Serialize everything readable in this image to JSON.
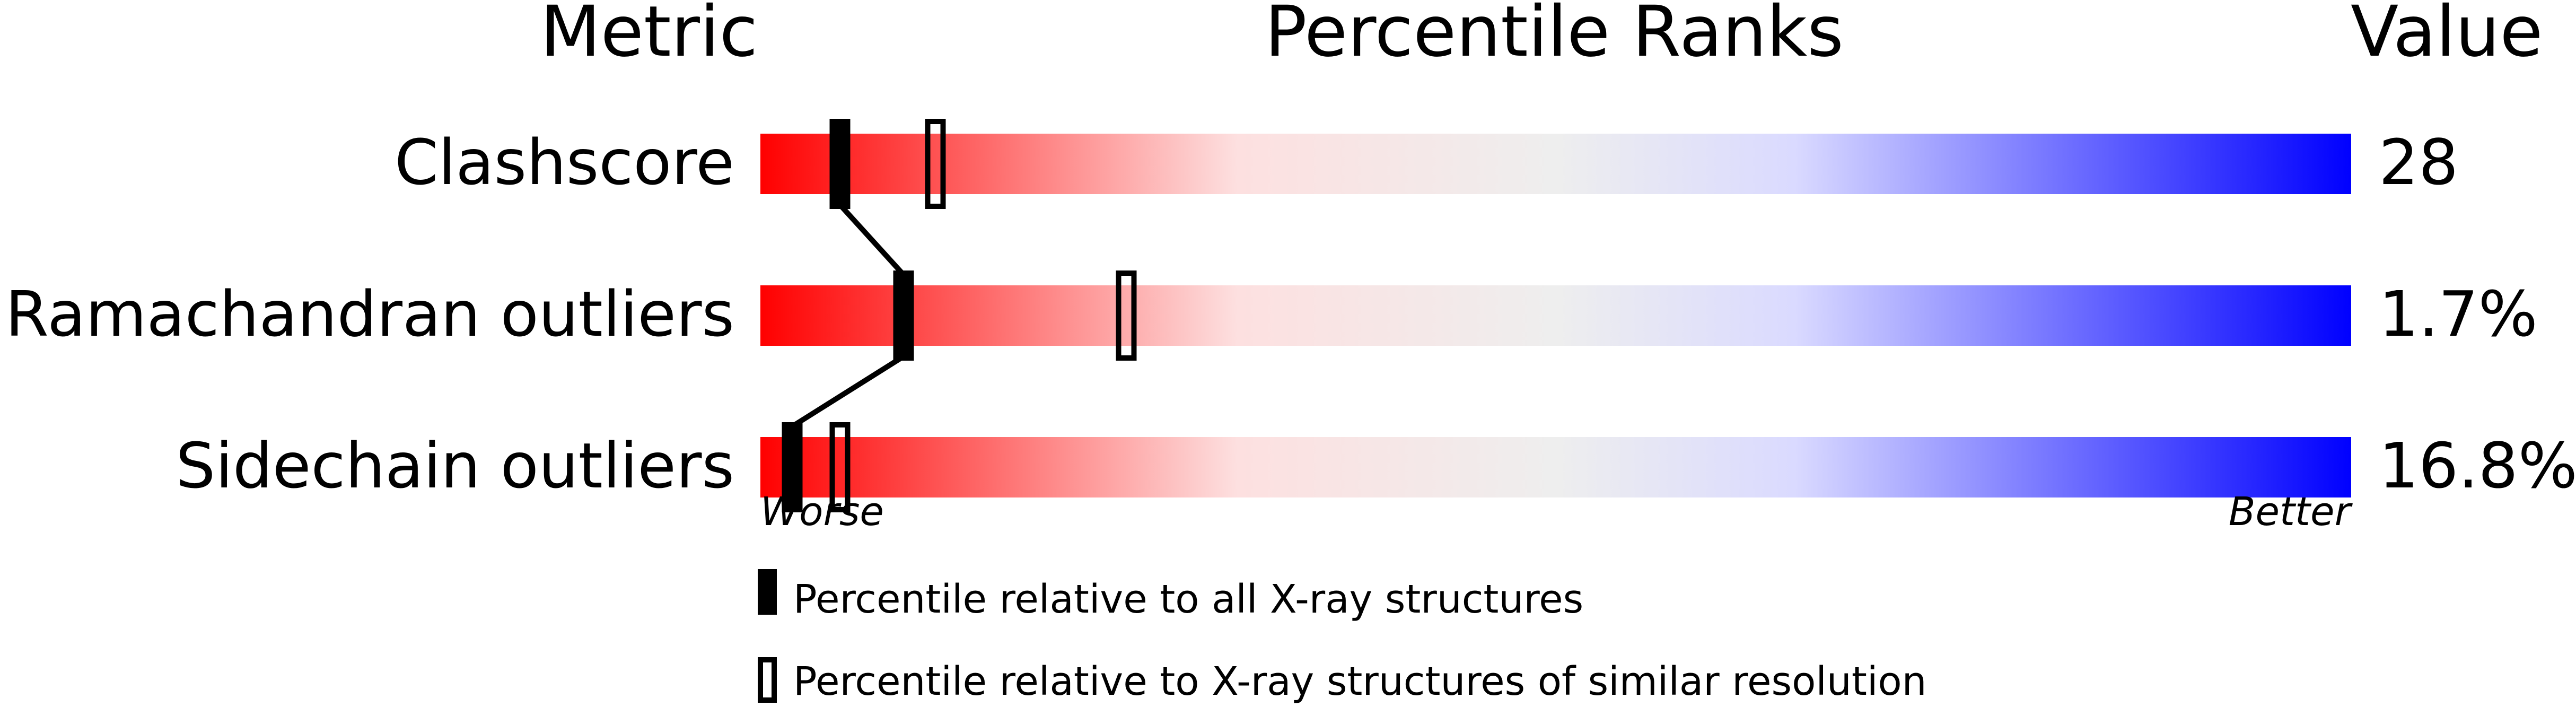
{
  "chart_data": {
    "type": "percentile-slider",
    "headers": {
      "metric": "Metric",
      "ranks": "Percentile Ranks",
      "value": "Value"
    },
    "xlim": [
      0,
      100
    ],
    "axis_labels": {
      "left": "Worse",
      "right": "Better"
    },
    "colors": {
      "worse": "#ff0000",
      "middle": "#eeeeee",
      "better": "#0000ff"
    },
    "rows": [
      {
        "metric": "Clashscore",
        "value": "28",
        "percentile_all": 5,
        "percentile_similar": 11
      },
      {
        "metric": "Ramachandran outliers",
        "value": "1.7%",
        "percentile_all": 9,
        "percentile_similar": 23
      },
      {
        "metric": "Sidechain outliers",
        "value": "16.8%",
        "percentile_all": 2,
        "percentile_similar": 5
      }
    ],
    "legend": [
      {
        "marker": "filled",
        "label": "Percentile relative to all X-ray structures"
      },
      {
        "marker": "open",
        "label": "Percentile relative to X-ray structures of similar resolution"
      }
    ]
  }
}
